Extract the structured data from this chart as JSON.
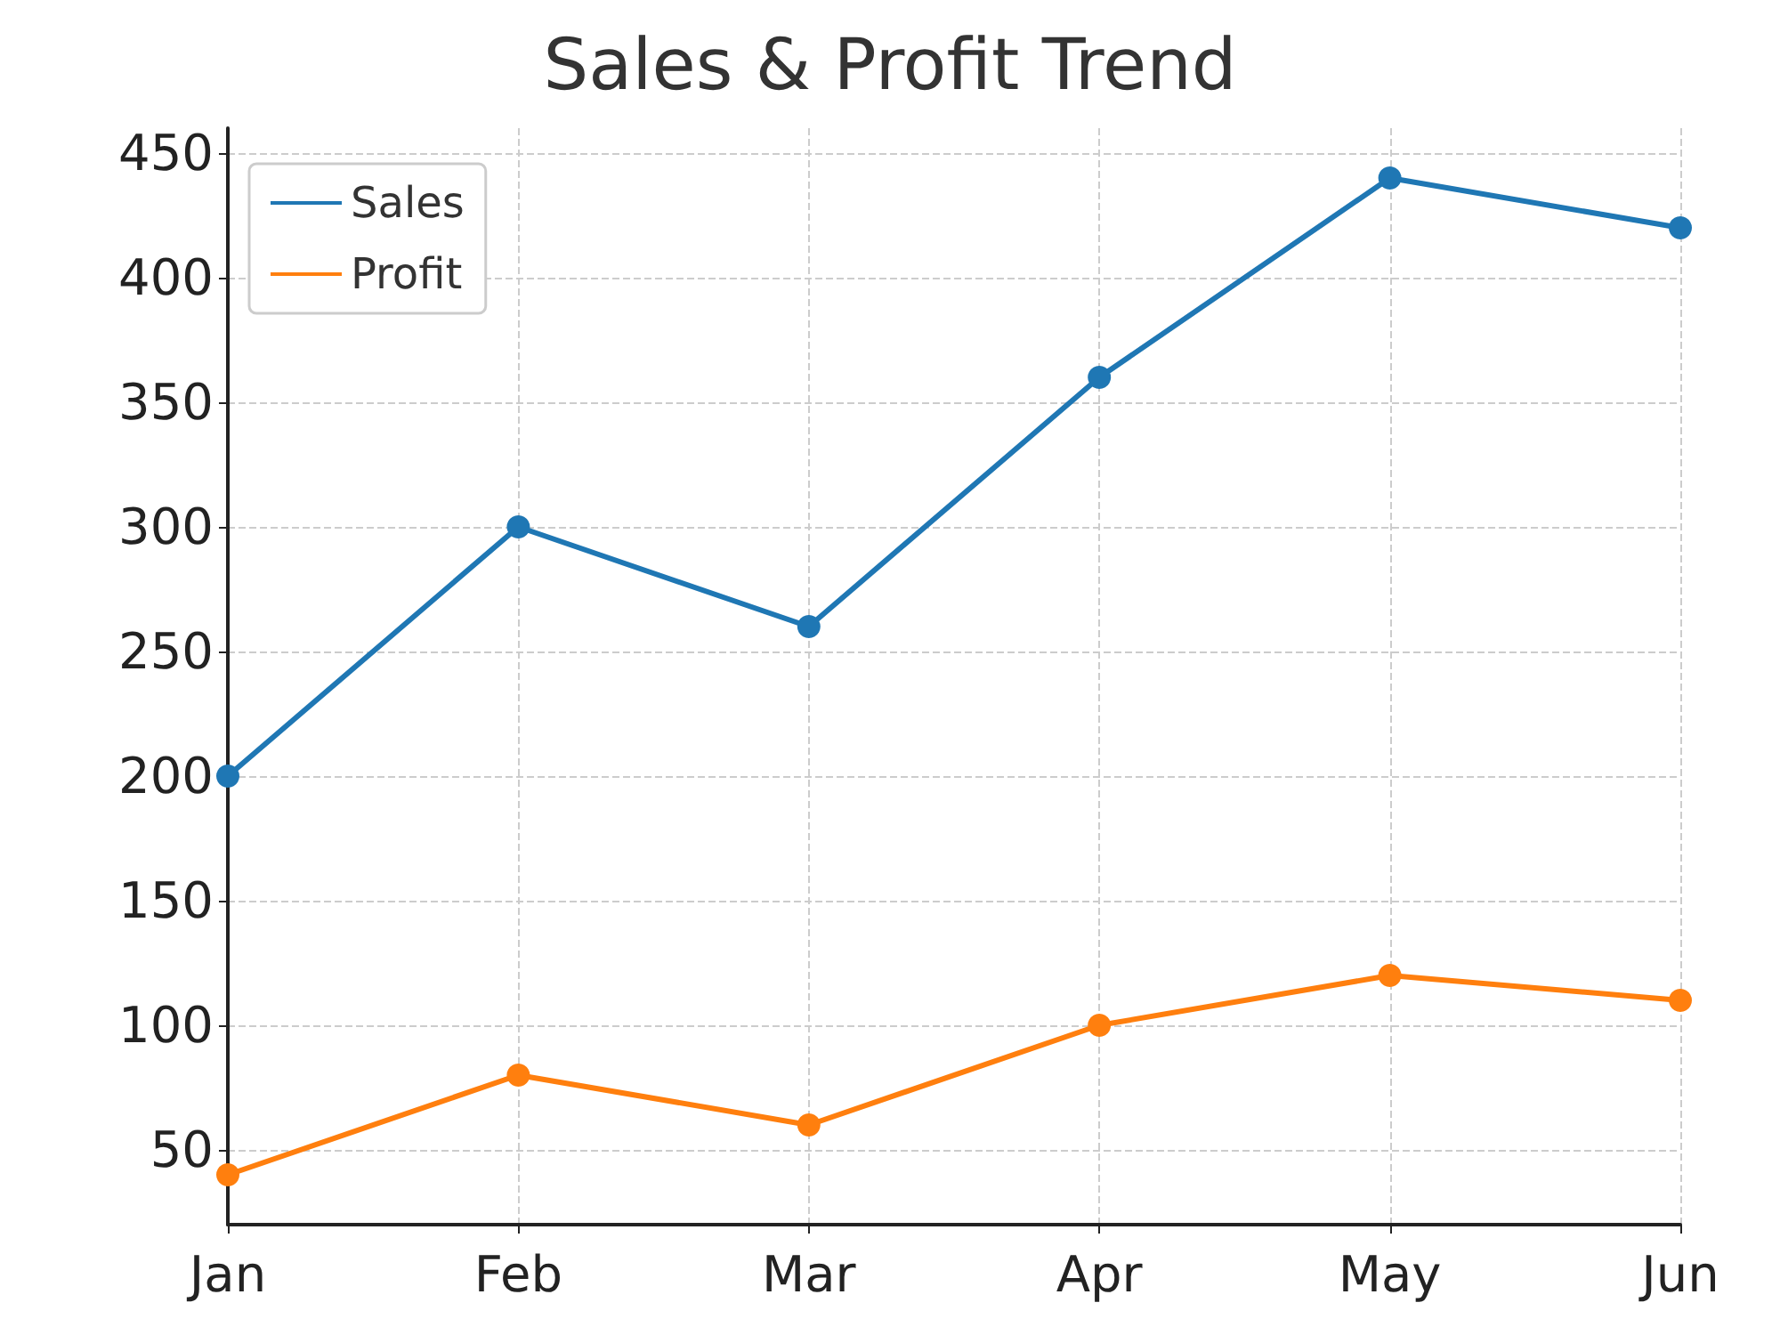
{
  "chart_data": {
    "type": "line",
    "title": "Sales & Profit Trend",
    "categories": [
      "Jan",
      "Feb",
      "Mar",
      "Apr",
      "May",
      "Jun"
    ],
    "series": [
      {
        "name": "Sales",
        "color": "#1f77b4",
        "values": [
          200,
          300,
          260,
          360,
          440,
          420
        ]
      },
      {
        "name": "Profit",
        "color": "#ff7f0e",
        "values": [
          40,
          80,
          60,
          100,
          120,
          110
        ]
      }
    ],
    "ylim": [
      20,
      460
    ],
    "yticks": [
      50,
      100,
      150,
      200,
      250,
      300,
      350,
      400,
      450
    ],
    "grid": true,
    "legend": "top left",
    "marker": "circle",
    "line_style": "solid"
  }
}
